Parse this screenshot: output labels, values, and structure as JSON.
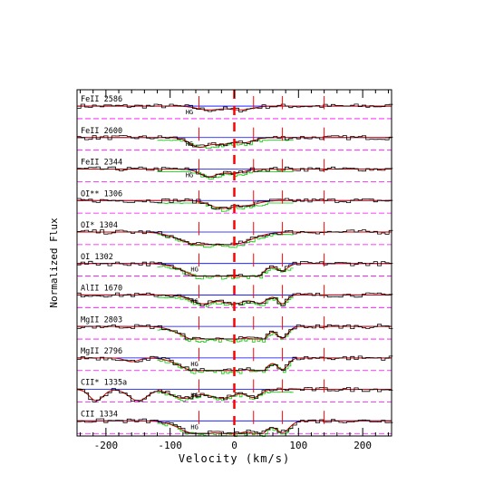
{
  "chart_data": {
    "type": "line",
    "xlabel": "Velocity (km/s)",
    "ylabel": "Normalized Flux",
    "xlim": [
      -245,
      245
    ],
    "x_ticks": [
      -200,
      -100,
      0,
      100,
      200
    ],
    "x_tick_labels": [
      "-200",
      "-100",
      "0",
      "100",
      "200"
    ],
    "grid": false,
    "legend": "none",
    "panel_labels": [
      "FeII 2586",
      "FeII 2600",
      "FeII 2344",
      "OI** 1306",
      "OI* 1304",
      "OI 1302",
      "AlII 1670",
      "MgII 2803",
      "MgII 2796",
      "CII* 1335a",
      "CII 1334"
    ],
    "hg_labels": [
      "HG",
      "HG",
      "HG",
      "HG",
      "HG",
      "HG",
      "HG",
      "HG"
    ],
    "reference_lines_km_s": {
      "systemic_red_thick": 0,
      "red_ticks": [
        -55,
        30,
        75,
        140
      ]
    },
    "panels": [
      {
        "name": "FeII 2586",
        "components": [
          {
            "v": -40,
            "depth": 0.3,
            "width": 25
          },
          {
            "v": 10,
            "depth": 0.3,
            "width": 25
          }
        ],
        "green_overlay": false
      },
      {
        "name": "FeII 2600",
        "components": [
          {
            "v": -55,
            "depth": 0.75,
            "width": 20
          },
          {
            "v": -20,
            "depth": 0.5,
            "width": 20
          },
          {
            "v": 15,
            "depth": 0.4,
            "width": 20
          }
        ],
        "green_overlay": true
      },
      {
        "name": "FeII 2344",
        "components": [
          {
            "v": -40,
            "depth": 0.6,
            "width": 20
          },
          {
            "v": 0,
            "depth": 0.35,
            "width": 20
          }
        ],
        "green_overlay": true
      },
      {
        "name": "OI** 1306",
        "components": [
          {
            "v": -20,
            "depth": 0.6,
            "width": 25
          },
          {
            "v": 20,
            "depth": 0.35,
            "width": 25
          }
        ],
        "green_overlay": true
      },
      {
        "name": "OI* 1304",
        "components": [
          {
            "v": -60,
            "depth": 0.9,
            "width": 40
          },
          {
            "v": 0,
            "depth": 0.9,
            "width": 40
          }
        ],
        "green_overlay": true
      },
      {
        "name": "OI 1302",
        "components": [
          {
            "v": -50,
            "depth": 1.0,
            "width": 40
          },
          {
            "v": 10,
            "depth": 1.0,
            "width": 40
          },
          {
            "v": 30,
            "depth": 0.6,
            "width": 15
          },
          {
            "v": 75,
            "depth": 0.5,
            "width": 12
          }
        ],
        "green_overlay": true
      },
      {
        "name": "AlII 1670",
        "components": [
          {
            "v": -50,
            "depth": 0.7,
            "width": 25
          },
          {
            "v": 0,
            "depth": 0.7,
            "width": 25
          },
          {
            "v": 40,
            "depth": 0.6,
            "width": 15
          },
          {
            "v": 75,
            "depth": 0.7,
            "width": 10
          }
        ],
        "green_overlay": true
      },
      {
        "name": "MgII 2803",
        "components": [
          {
            "v": -60,
            "depth": 1.0,
            "width": 35
          },
          {
            "v": 0,
            "depth": 1.0,
            "width": 40
          },
          {
            "v": 40,
            "depth": 0.9,
            "width": 15
          },
          {
            "v": 75,
            "depth": 0.9,
            "width": 12
          }
        ],
        "green_overlay": true
      },
      {
        "name": "MgII 2796",
        "components": [
          {
            "v": -160,
            "depth": 0.3,
            "width": 15
          },
          {
            "v": -60,
            "depth": 1.0,
            "width": 35
          },
          {
            "v": 0,
            "depth": 1.0,
            "width": 40
          },
          {
            "v": 40,
            "depth": 0.9,
            "width": 15
          },
          {
            "v": 75,
            "depth": 0.9,
            "width": 12
          }
        ],
        "green_overlay": true
      },
      {
        "name": "CII* 1335a",
        "components": [
          {
            "v": -215,
            "depth": 0.9,
            "width": 15
          },
          {
            "v": -150,
            "depth": 0.9,
            "width": 20
          },
          {
            "v": -80,
            "depth": 0.7,
            "width": 25
          },
          {
            "v": -20,
            "depth": 0.7,
            "width": 30
          },
          {
            "v": 30,
            "depth": 0.6,
            "width": 15
          }
        ],
        "green_overlay": true
      },
      {
        "name": "CII 1334",
        "components": [
          {
            "v": -60,
            "depth": 1.0,
            "width": 35
          },
          {
            "v": 0,
            "depth": 1.0,
            "width": 35
          },
          {
            "v": 40,
            "depth": 0.9,
            "width": 15
          },
          {
            "v": 75,
            "depth": 0.9,
            "width": 15
          }
        ],
        "green_overlay": true
      }
    ],
    "colors": {
      "data": "#000000",
      "model": "#cc0000",
      "continuum": "#0000ff",
      "zero_level": "#ff00ff",
      "overlay": "#00cc00",
      "systemic": "#ff0000"
    }
  }
}
